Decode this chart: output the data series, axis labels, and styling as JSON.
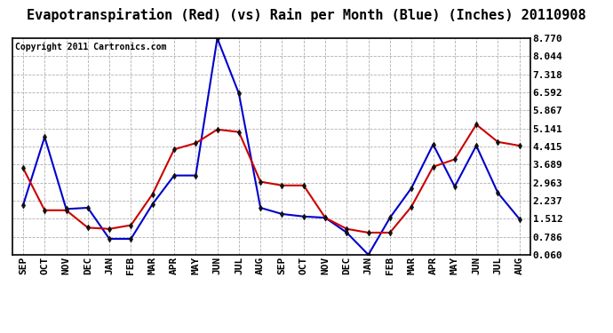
{
  "title": "Evapotranspiration (Red) (vs) Rain per Month (Blue) (Inches) 20110908",
  "copyright": "Copyright 2011 Cartronics.com",
  "months": [
    "SEP",
    "OCT",
    "NOV",
    "DEC",
    "JAN",
    "FEB",
    "MAR",
    "APR",
    "MAY",
    "JUN",
    "JUL",
    "AUG",
    "SEP",
    "OCT",
    "NOV",
    "DEC",
    "JAN",
    "FEB",
    "MAR",
    "APR",
    "MAY",
    "JUN",
    "JUL",
    "AUG"
  ],
  "red_data": [
    3.55,
    1.85,
    1.85,
    1.15,
    1.1,
    1.25,
    2.5,
    4.3,
    4.55,
    5.1,
    5.0,
    3.0,
    2.85,
    2.85,
    1.55,
    1.1,
    0.95,
    0.95,
    2.0,
    3.6,
    3.9,
    5.3,
    4.6,
    4.45
  ],
  "blue_data": [
    2.05,
    4.8,
    1.9,
    1.95,
    0.7,
    0.7,
    2.1,
    3.25,
    3.25,
    8.77,
    6.55,
    1.95,
    1.7,
    1.6,
    1.55,
    0.95,
    0.06,
    1.55,
    2.75,
    4.5,
    2.8,
    4.45,
    2.55,
    1.5
  ],
  "yticks": [
    0.06,
    0.786,
    1.512,
    2.237,
    2.963,
    3.689,
    4.415,
    5.141,
    5.867,
    6.592,
    7.318,
    8.044,
    8.77
  ],
  "ymin": 0.06,
  "ymax": 8.77,
  "red_color": "#cc0000",
  "blue_color": "#0000cc",
  "background_color": "#ffffff",
  "grid_color": "#b0b0b0",
  "title_fontsize": 11,
  "copyright_fontsize": 7,
  "tick_fontsize": 8,
  "marker": "d",
  "marker_color": "#111111",
  "marker_size": 3.5,
  "line_width": 1.5
}
